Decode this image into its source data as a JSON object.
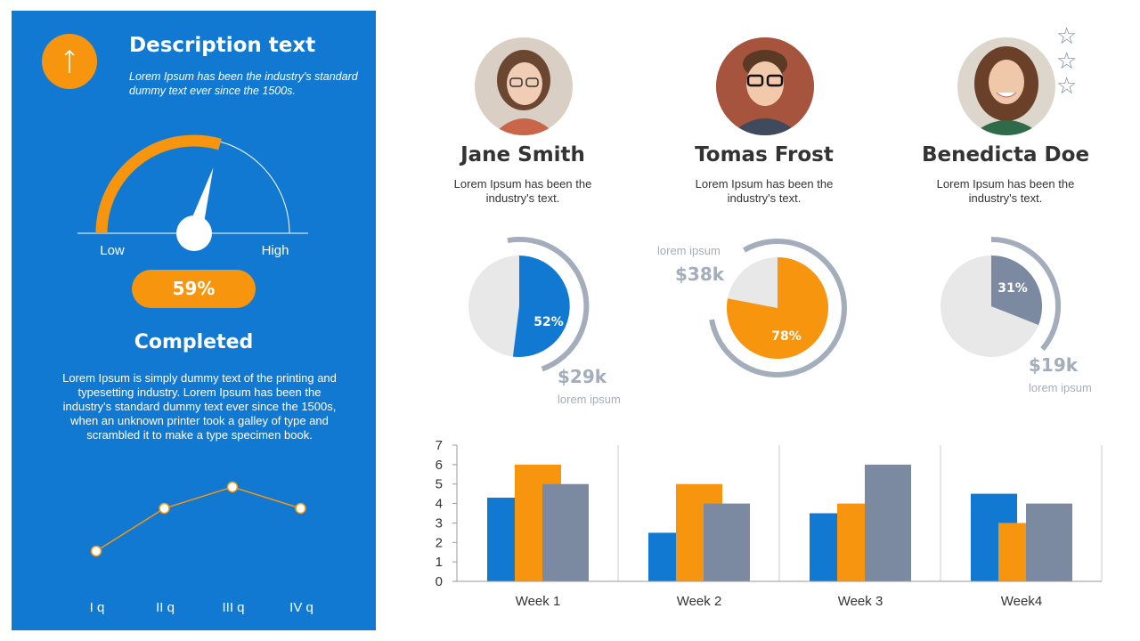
{
  "left_panel": {
    "icon": "arrow-up-icon",
    "title": "Description text",
    "subtitle": "Lorem Ipsum has been the industry's standard dummy text ever since the 1500s.",
    "gauge": {
      "value": 59,
      "low_label": "Low",
      "high_label": "High",
      "display": "59%"
    },
    "completed_title": "Completed",
    "body_text": "Lorem Ipsum is simply dummy text of the printing and typesetting industry. Lorem Ipsum has been the industry's standard dummy text ever since the 1500s, when an unknown printer took a galley of type and scrambled it to make a type specimen book."
  },
  "people": [
    {
      "name": "Jane Smith",
      "desc": "Lorem Ipsum has been the industry's text.",
      "percent_label": "52%",
      "money": "$29k",
      "money_caption": "lorem ipsum"
    },
    {
      "name": "Tomas Frost",
      "desc": "Lorem Ipsum has been the industry's text.",
      "percent_label": "78%",
      "money": "$38k",
      "money_caption": "lorem ipsum"
    },
    {
      "name": "Benedicta Doe",
      "desc": "Lorem Ipsum has been the industry's text.",
      "percent_label": "31%",
      "money": "$19k",
      "money_caption": "lorem ipsum"
    }
  ],
  "rating": {
    "icon": "star-outline-icon",
    "stars": 3
  },
  "colors": {
    "blue": "#1279d2",
    "orange": "#f7960e",
    "gray": "#7b8aa1",
    "light": "#e8e8e8",
    "ring": "#a4adbb"
  },
  "chart_data": [
    {
      "type": "gauge",
      "value": 59,
      "range": [
        0,
        100
      ],
      "labels": [
        "Low",
        "High"
      ]
    },
    {
      "type": "line",
      "categories": [
        "I q",
        "II q",
        "III q",
        "IV q"
      ],
      "values": [
        2,
        3,
        3.5,
        3
      ],
      "ylim": [
        0,
        4
      ]
    },
    {
      "type": "pie",
      "title": "Jane Smith",
      "slices": [
        {
          "label": "52%",
          "value": 52
        },
        {
          "label": "",
          "value": 48
        }
      ]
    },
    {
      "type": "pie",
      "title": "Tomas Frost",
      "slices": [
        {
          "label": "78%",
          "value": 78
        },
        {
          "label": "",
          "value": 22
        }
      ]
    },
    {
      "type": "pie",
      "title": "Benedicta Doe",
      "slices": [
        {
          "label": "31%",
          "value": 31
        },
        {
          "label": "",
          "value": 69
        }
      ]
    },
    {
      "type": "bar",
      "categories": [
        "Week 1",
        "Week 2",
        "Week 3",
        "Week4"
      ],
      "series": [
        {
          "values": [
            4.3,
            2.5,
            3.5,
            4.5
          ]
        },
        {
          "values": [
            6,
            5,
            4,
            3
          ]
        },
        {
          "values": [
            5,
            4,
            6,
            4
          ]
        }
      ],
      "ylim": [
        0,
        7
      ],
      "yticks": [
        0,
        1,
        2,
        3,
        4,
        5,
        6,
        7
      ],
      "grid": false
    }
  ]
}
